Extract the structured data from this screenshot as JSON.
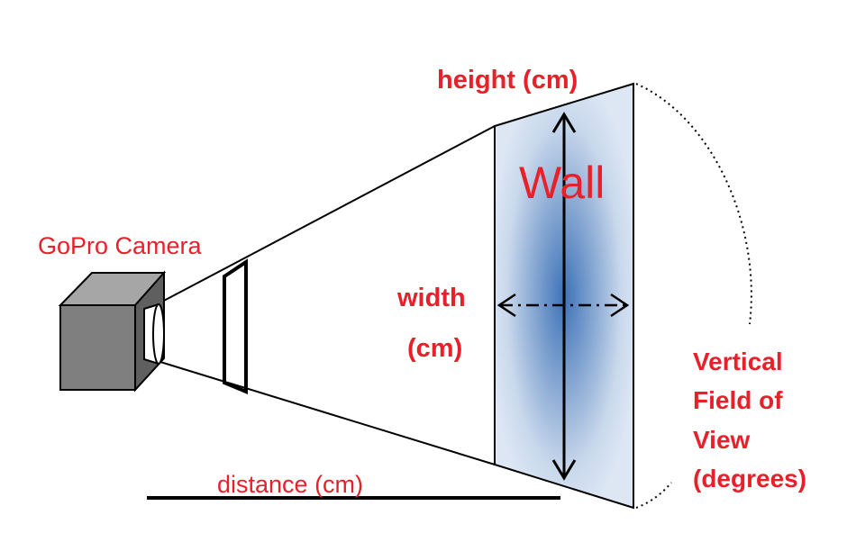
{
  "labels": {
    "camera": "GoPro Camera",
    "height": "height (cm)",
    "wall": "Wall",
    "width_line1": "width",
    "width_line2": "(cm)",
    "distance": "distance (cm)",
    "fov_line1": "Vertical",
    "fov_line2": "Field of",
    "fov_line3": "View",
    "fov_line4": "(degrees)"
  },
  "colors": {
    "label_red": "#e8202a",
    "wall_fill": "#dbe6f3",
    "wall_center": "#3d72b8",
    "camera_front": "#7f7f7f",
    "camera_top": "#a6a6a6",
    "camera_side": "#5f5f5f",
    "line": "#000000"
  }
}
